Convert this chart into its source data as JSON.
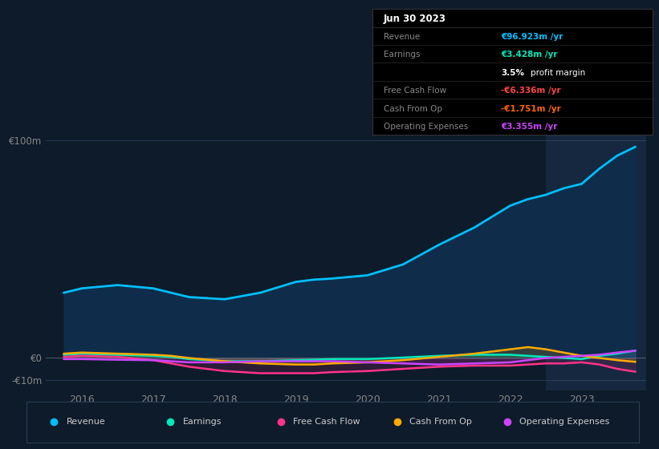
{
  "bg_color": "#0d1b2a",
  "plot_bg_color": "#0d1b2a",
  "highlight_bg": "#162840",
  "grid_color": "#2a3f55",
  "y_label_color": "#888888",
  "x_tick_color": "#888888",
  "years": [
    2015.75,
    2016.0,
    2016.5,
    2017.0,
    2017.25,
    2017.5,
    2018.0,
    2018.5,
    2019.0,
    2019.25,
    2019.5,
    2020.0,
    2020.5,
    2021.0,
    2021.5,
    2022.0,
    2022.25,
    2022.5,
    2022.75,
    2023.0,
    2023.25,
    2023.5,
    2023.75
  ],
  "revenue": [
    30,
    32,
    33.5,
    32,
    30,
    28,
    27,
    30,
    35,
    36,
    36.5,
    38,
    43,
    52,
    60,
    70,
    73,
    75,
    78,
    80,
    87,
    93,
    97
  ],
  "earnings": [
    1.5,
    2,
    1.5,
    1,
    0.5,
    -0.5,
    -1.5,
    -1.5,
    -1,
    -0.8,
    -0.5,
    -0.5,
    0.2,
    1,
    1.5,
    1.5,
    1,
    0.5,
    0,
    -0.5,
    1,
    2,
    3.4
  ],
  "free_cash_flow": [
    0.5,
    1,
    0.5,
    -1,
    -2.5,
    -4,
    -6,
    -7,
    -7,
    -7,
    -6.5,
    -6,
    -5,
    -4,
    -3.5,
    -3.5,
    -3,
    -2.5,
    -2.5,
    -2,
    -3,
    -5,
    -6.3
  ],
  "cash_from_op": [
    2,
    2.5,
    2,
    1.5,
    1,
    0,
    -1.5,
    -2.5,
    -3,
    -3,
    -2.5,
    -2,
    -1,
    0.5,
    2,
    4,
    5,
    4,
    2.5,
    1,
    0,
    -1,
    -1.75
  ],
  "operating_expenses": [
    -0.5,
    -0.5,
    -0.8,
    -1,
    -1.5,
    -2,
    -2,
    -1.5,
    -1.5,
    -1.5,
    -1.5,
    -2,
    -2.5,
    -3,
    -2.5,
    -2,
    -1,
    0,
    0.5,
    1,
    1.5,
    2.5,
    3.355
  ],
  "revenue_color": "#00bfff",
  "earnings_color": "#00e8bb",
  "fcf_color": "#ff3388",
  "cashop_color": "#ffaa00",
  "opex_color": "#cc44ff",
  "revenue_fill": "#0f2d4a",
  "highlight_x_start": 2022.5,
  "highlight_x_end": 2023.9,
  "ylim": [
    -15,
    115
  ],
  "xlim": [
    2015.5,
    2023.9
  ],
  "xtick_positions": [
    2016,
    2017,
    2018,
    2019,
    2020,
    2021,
    2022,
    2023
  ],
  "xtick_labels": [
    "2016",
    "2017",
    "2018",
    "2019",
    "2020",
    "2021",
    "2022",
    "2023"
  ],
  "info_box": {
    "date": "Jun 30 2023",
    "rows": [
      {
        "label": "Revenue",
        "value": "€96.923m /yr",
        "value_color": "#00bfff",
        "label_color": "#888888"
      },
      {
        "label": "Earnings",
        "value": "€3.428m /yr",
        "value_color": "#00e8bb",
        "label_color": "#888888"
      },
      {
        "label": "",
        "value": "3.5% profit margin",
        "value_color": "#ffffff",
        "label_color": "#888888",
        "bold_part": "3.5%"
      },
      {
        "label": "Free Cash Flow",
        "value": "-€6.336m /yr",
        "value_color": "#ff4444",
        "label_color": "#888888"
      },
      {
        "label": "Cash From Op",
        "value": "-€1.751m /yr",
        "value_color": "#ff6600",
        "label_color": "#888888"
      },
      {
        "label": "Operating Expenses",
        "value": "€3.355m /yr",
        "value_color": "#cc44ff",
        "label_color": "#888888"
      }
    ]
  },
  "legend_items": [
    {
      "label": "Revenue",
      "color": "#00bfff"
    },
    {
      "label": "Earnings",
      "color": "#00e8bb"
    },
    {
      "label": "Free Cash Flow",
      "color": "#ff3388"
    },
    {
      "label": "Cash From Op",
      "color": "#ffaa00"
    },
    {
      "label": "Operating Expenses",
      "color": "#cc44ff"
    }
  ]
}
